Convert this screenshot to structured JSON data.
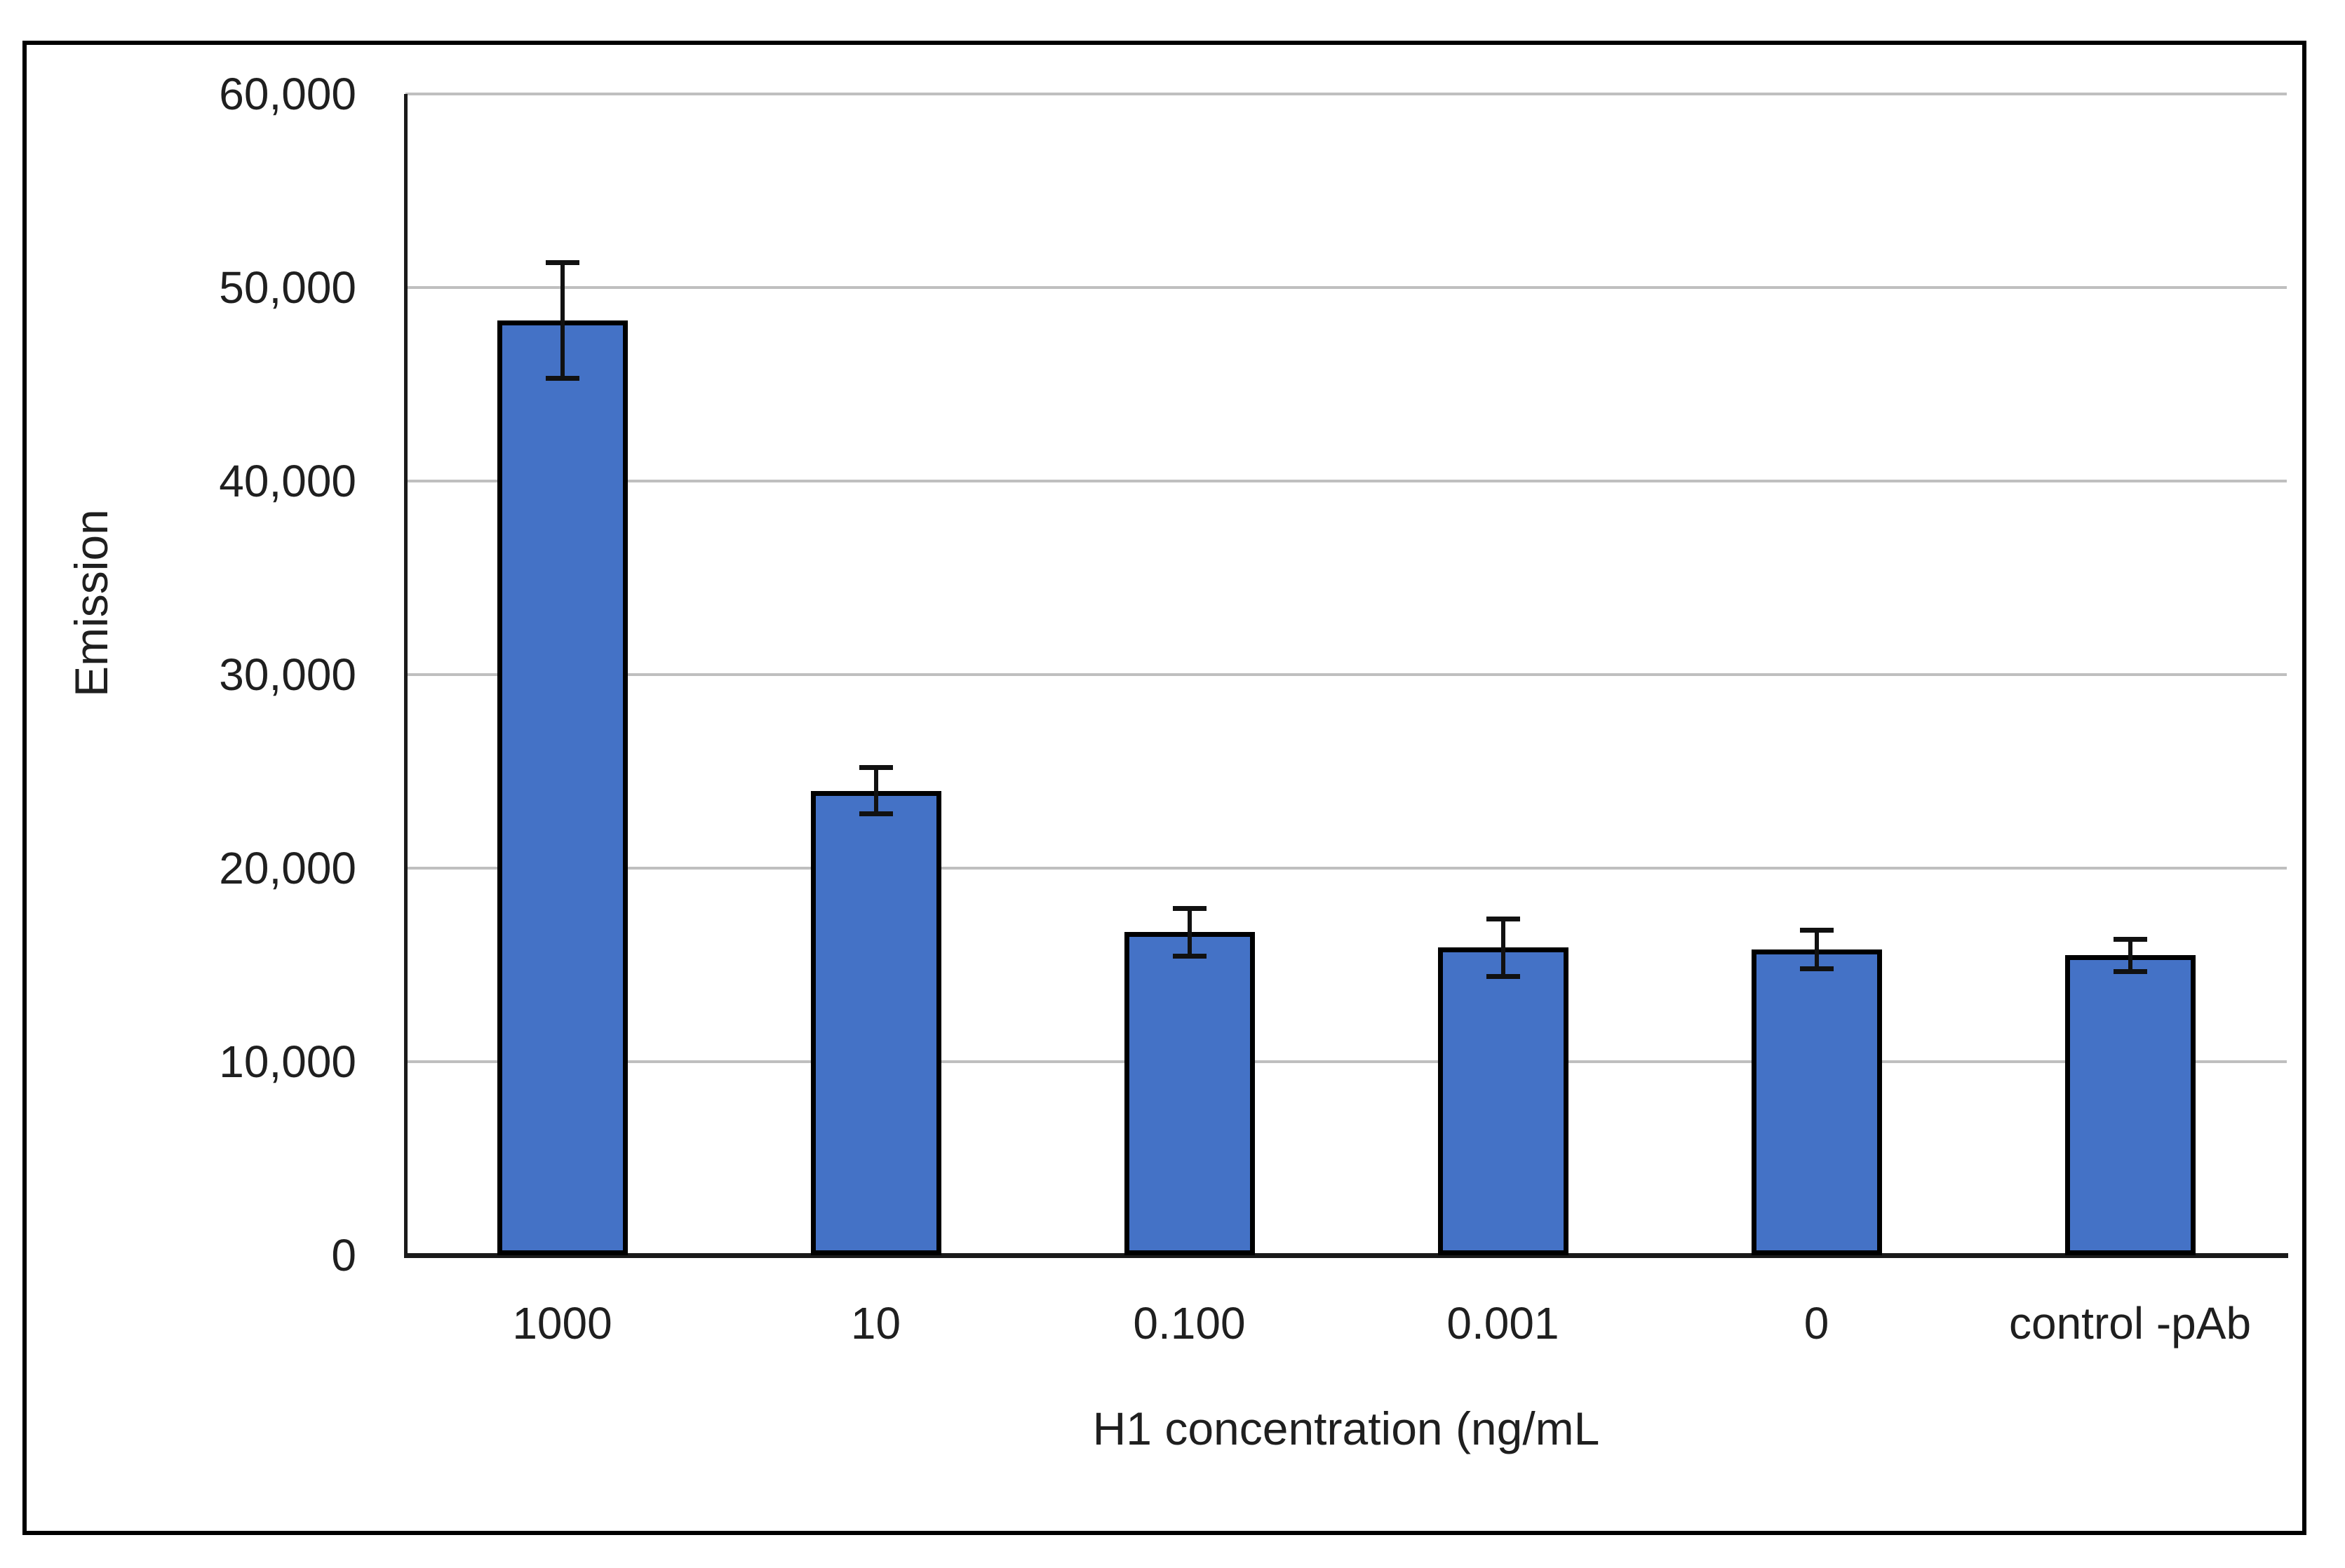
{
  "chart_data": {
    "type": "bar",
    "xlabel": "H1 concentration (ng/mL",
    "ylabel": "Emission",
    "categories": [
      "1000",
      "10",
      "0.100",
      "0.001",
      "0",
      "control -pAb"
    ],
    "values": [
      48300,
      24000,
      16700,
      15900,
      15800,
      15500
    ],
    "error_bars": [
      3000,
      1200,
      1250,
      1500,
      1000,
      850
    ],
    "ylim": [
      0,
      60000
    ],
    "ytick_step": 10000,
    "ytick_labels": [
      "0",
      "10,000",
      "20,000",
      "30,000",
      "40,000",
      "50,000",
      "60,000"
    ],
    "grid": true,
    "legend": "none",
    "colors": {
      "bar_fill": "#4472C6",
      "bar_border": "#000000",
      "error_bar": "#111111",
      "gridline": "#BFBFBF",
      "axis_line": "#1a1a1a",
      "text": "#1f1f1f",
      "frame_border": "#000000",
      "background": "#FFFFFF"
    }
  }
}
